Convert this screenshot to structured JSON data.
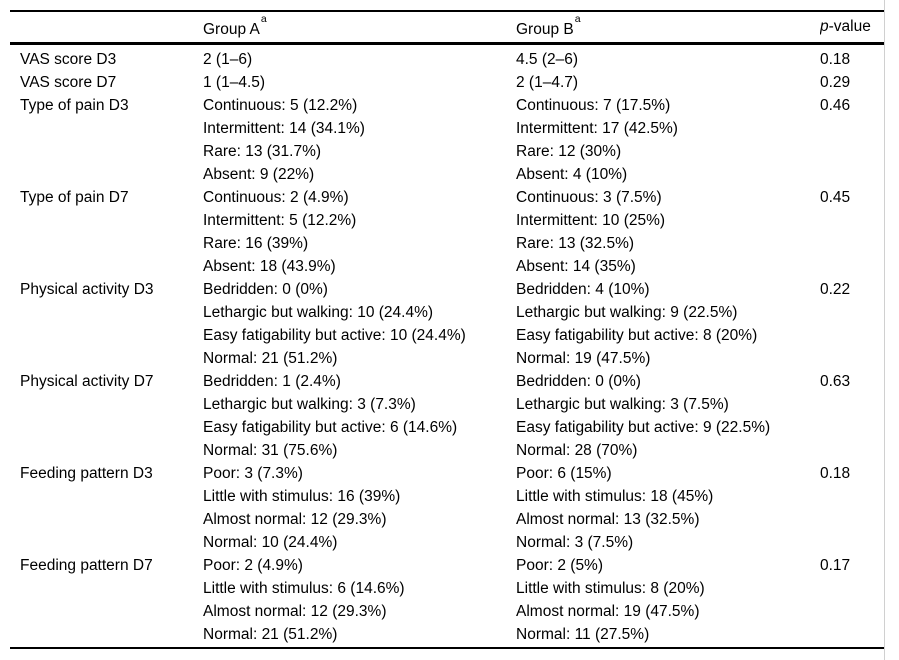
{
  "table": {
    "colors": {
      "border": "#000000",
      "text": "#000000",
      "background": "#ffffff",
      "page_edge": "#d0d0d0"
    },
    "columns": {
      "stub": "",
      "group_a": {
        "label": "Group A",
        "superscript": "a"
      },
      "group_b": {
        "label": "Group B",
        "superscript": "a"
      },
      "p_value": {
        "italic": "p",
        "rest": "-value"
      }
    },
    "rows": [
      {
        "label": "VAS score D3",
        "group_a": [
          "2 (1–6)"
        ],
        "group_b": [
          "4.5 (2–6)"
        ],
        "p": "0.18"
      },
      {
        "label": "VAS score D7",
        "group_a": [
          "1 (1–4.5)"
        ],
        "group_b": [
          "2 (1–4.7)"
        ],
        "p": "0.29"
      },
      {
        "label": "Type of pain D3",
        "group_a": [
          "Continuous: 5 (12.2%)",
          "Intermittent: 14 (34.1%)",
          "Rare: 13 (31.7%)",
          "Absent: 9 (22%)"
        ],
        "group_b": [
          "Continuous: 7 (17.5%)",
          "Intermittent: 17 (42.5%)",
          "Rare: 12 (30%)",
          "Absent: 4 (10%)"
        ],
        "p": "0.46"
      },
      {
        "label": "Type of pain D7",
        "group_a": [
          "Continuous: 2 (4.9%)",
          "Intermittent: 5 (12.2%)",
          "Rare: 16 (39%)",
          "Absent: 18 (43.9%)"
        ],
        "group_b": [
          "Continuous: 3 (7.5%)",
          "Intermittent: 10 (25%)",
          "Rare: 13 (32.5%)",
          "Absent: 14 (35%)"
        ],
        "p": "0.45"
      },
      {
        "label": "Physical activity D3",
        "group_a": [
          "Bedridden: 0 (0%)",
          "Lethargic but walking: 10 (24.4%)",
          "Easy fatigability but active: 10 (24.4%)",
          "Normal: 21 (51.2%)"
        ],
        "group_b": [
          "Bedridden: 4 (10%)",
          "Lethargic but walking: 9 (22.5%)",
          "Easy fatigability but active: 8 (20%)",
          "Normal: 19 (47.5%)"
        ],
        "p": "0.22"
      },
      {
        "label": "Physical activity D7",
        "group_a": [
          "Bedridden: 1 (2.4%)",
          "Lethargic but walking: 3 (7.3%)",
          "Easy fatigability but active: 6 (14.6%)",
          "Normal: 31 (75.6%)"
        ],
        "group_b": [
          "Bedridden: 0 (0%)",
          "Lethargic but walking: 3 (7.5%)",
          "Easy fatigability but active: 9 (22.5%)",
          "Normal: 28 (70%)"
        ],
        "p": "0.63"
      },
      {
        "label": "Feeding pattern D3",
        "group_a": [
          "Poor: 3 (7.3%)",
          "Little with stimulus: 16 (39%)",
          "Almost normal: 12 (29.3%)",
          "Normal: 10 (24.4%)"
        ],
        "group_b": [
          "Poor: 6 (15%)",
          "Little with stimulus: 18 (45%)",
          "Almost normal: 13 (32.5%)",
          "Normal: 3 (7.5%)"
        ],
        "p": "0.18"
      },
      {
        "label": "Feeding pattern D7",
        "group_a": [
          "Poor: 2 (4.9%)",
          "Little with stimulus: 6 (14.6%)",
          "Almost normal: 12 (29.3%)",
          "Normal: 21 (51.2%)"
        ],
        "group_b": [
          "Poor: 2 (5%)",
          "Little with stimulus: 8 (20%)",
          "Almost normal: 19 (47.5%)",
          "Normal: 11 (27.5%)"
        ],
        "p": "0.17"
      }
    ]
  }
}
